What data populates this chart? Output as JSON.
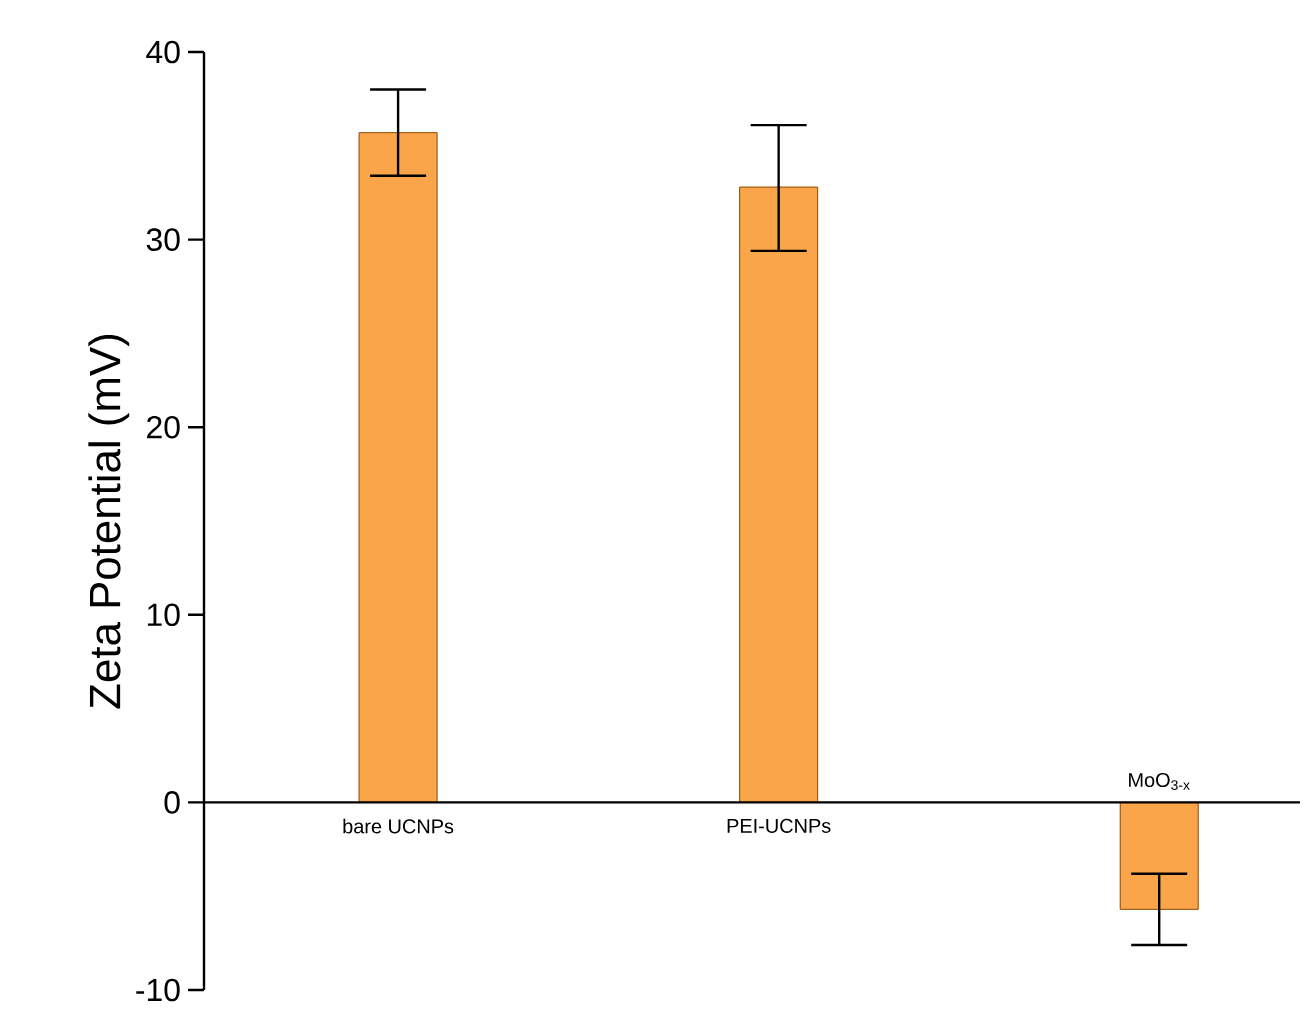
{
  "chart_data": {
    "type": "bar",
    "ylabel": "Zeta Potential (mV)",
    "categories": [
      "bare UCNPs",
      "PEI-UCNPs",
      "MoO$_{3-x}$"
    ],
    "values": [
      35.7,
      32.8,
      -5.7
    ],
    "errors": [
      [
        33.4,
        38.0
      ],
      [
        29.4,
        36.1
      ],
      [
        -7.6,
        -3.8
      ]
    ],
    "color": "#fba54a",
    "ylim": [
      -10,
      40
    ],
    "yticks": [
      -10,
      0,
      10,
      20,
      30,
      40
    ],
    "grid": false
  }
}
